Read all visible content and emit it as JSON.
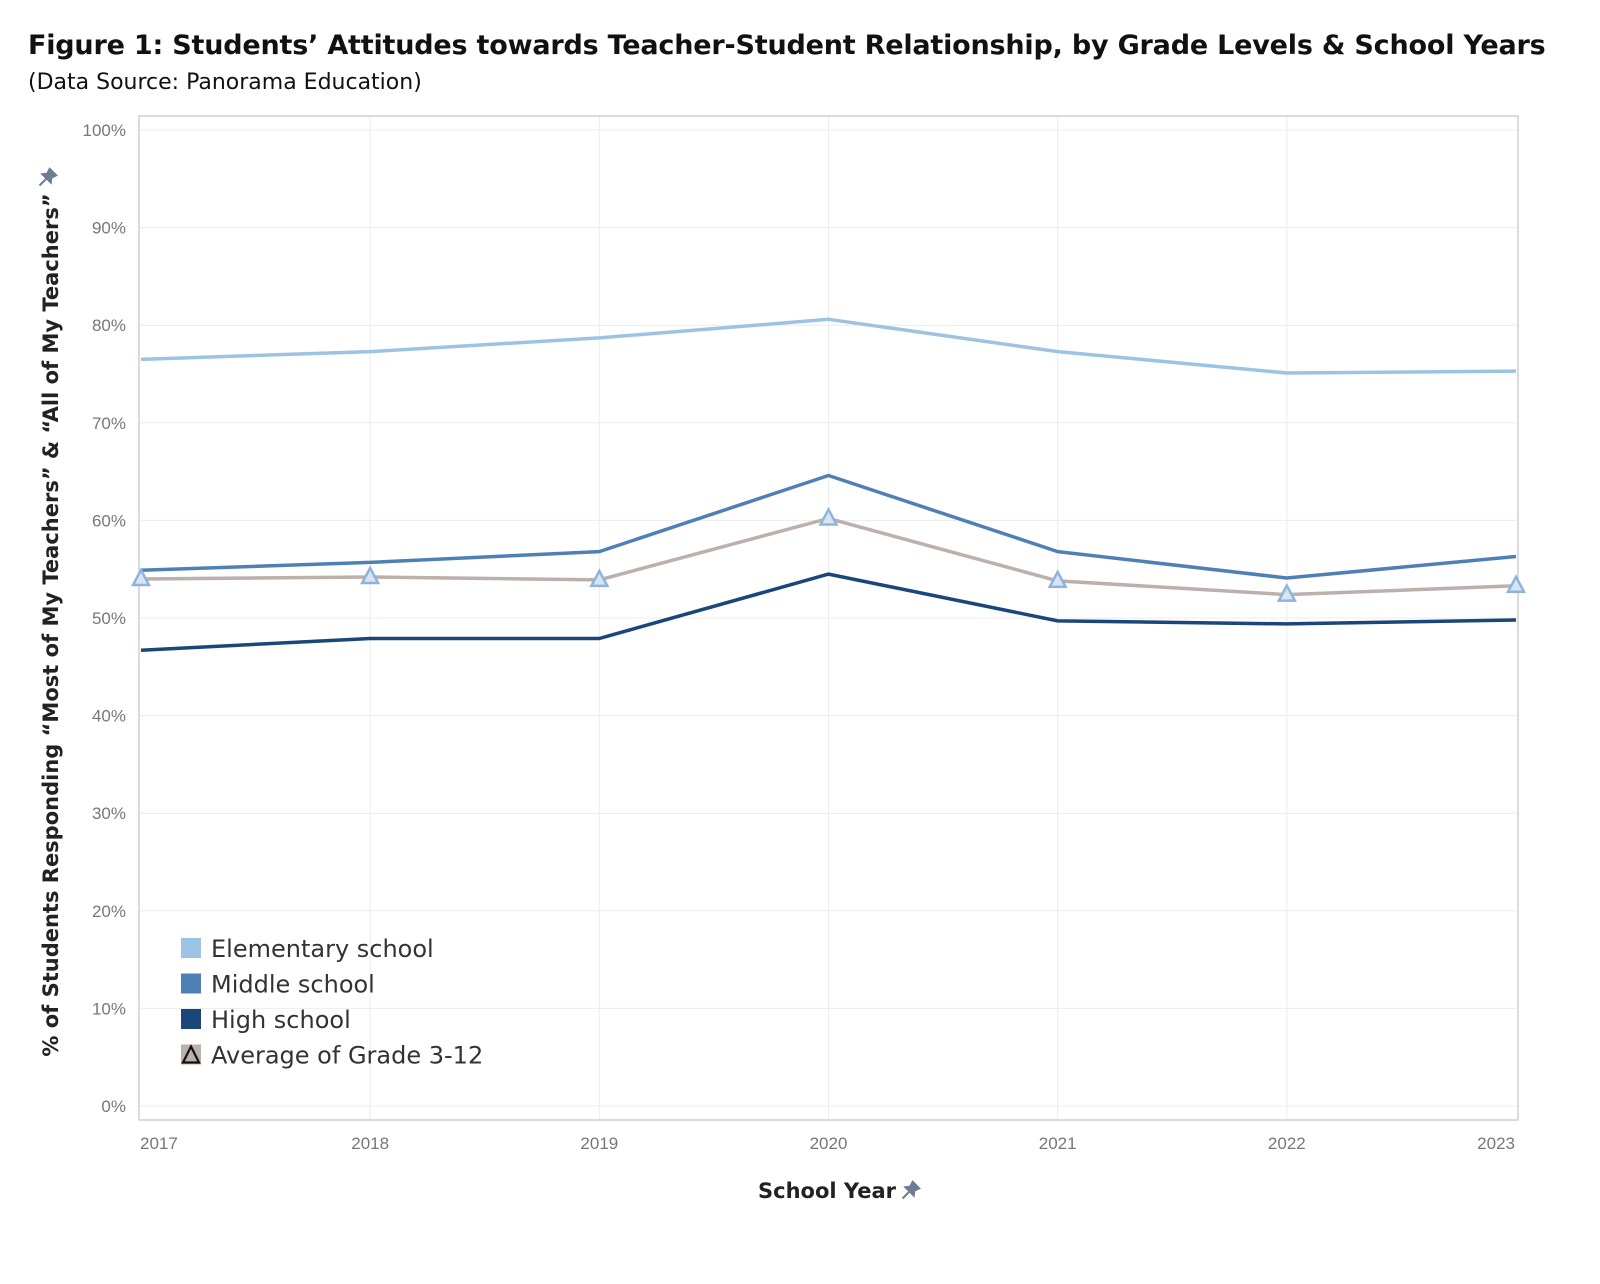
{
  "figure": {
    "title": "Figure 1: Students’ Attitudes towards Teacher-Student Relationship, by Grade Levels & School Years",
    "subtitle": "(Data Source: Panorama Education)"
  },
  "chart_data": {
    "type": "line",
    "title": "Figure 1: Students’ Attitudes towards Teacher-Student Relationship, by Grade Levels & School Years",
    "subtitle": "(Data Source: Panorama Education)",
    "xlabel": "School Year",
    "ylabel": "% of Students Responding “Most of My Teachers” & “All of My Teachers”",
    "categories": [
      "2017",
      "2018",
      "2019",
      "2020",
      "2021",
      "2022",
      "2023"
    ],
    "ylim": [
      0,
      100
    ],
    "y_ticks": [
      "0%",
      "10%",
      "20%",
      "30%",
      "40%",
      "50%",
      "60%",
      "70%",
      "80%",
      "90%",
      "100%"
    ],
    "grid": true,
    "legend_position": "bottom-left",
    "series": [
      {
        "name": "Elementary school",
        "color": "#9dc3e4",
        "marker": "none",
        "values": [
          76.5,
          77.3,
          78.7,
          80.6,
          77.3,
          75.1,
          75.3
        ]
      },
      {
        "name": "Middle school",
        "color": "#4f80b5",
        "marker": "none",
        "values": [
          54.9,
          55.7,
          56.8,
          64.6,
          56.8,
          54.1,
          56.3
        ]
      },
      {
        "name": "High school",
        "color": "#1a4679",
        "marker": "none",
        "values": [
          46.7,
          47.9,
          47.9,
          54.5,
          49.7,
          49.4,
          49.8
        ]
      },
      {
        "name": "Average of Grade 3-12",
        "color": "#bbb0ab",
        "marker": "triangle",
        "marker_color": "#8fb4dc",
        "values": [
          54.0,
          54.2,
          53.9,
          60.2,
          53.8,
          52.4,
          53.3
        ]
      }
    ]
  }
}
